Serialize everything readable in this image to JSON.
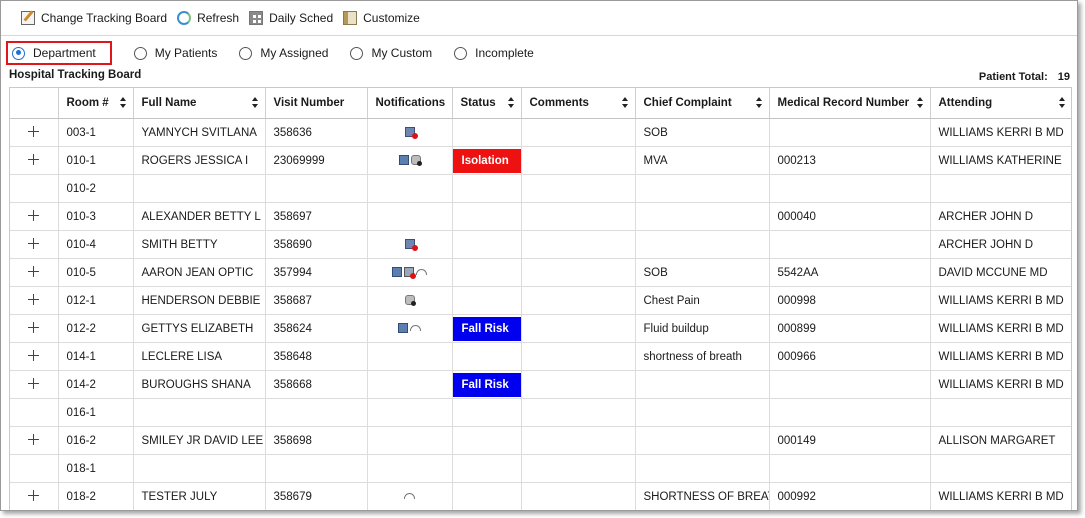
{
  "toolbar": {
    "change_tracking_board": "Change Tracking Board",
    "refresh": "Refresh",
    "daily_sched": "Daily Sched",
    "customize": "Customize"
  },
  "filters": {
    "options": [
      "Department",
      "My Patients",
      "My Assigned",
      "My Custom",
      "Incomplete"
    ],
    "selected": "Department"
  },
  "board": {
    "title": "Hospital Tracking Board",
    "patient_total_label": "Patient Total:",
    "patient_total_value": "19"
  },
  "columns": [
    "Room #",
    "Full Name",
    "Visit Number",
    "Notifications",
    "Status",
    "Comments",
    "Chief Complaint",
    "Medical Record Number",
    "Attending"
  ],
  "status_colors": {
    "Isolation": "#ee1111",
    "Fall Risk": "#0000ee"
  },
  "rows": [
    {
      "expand": true,
      "room": "003-1",
      "name": "YAMNYCH SVITLANA",
      "visit": "358636",
      "notif": [
        "alert-icon"
      ],
      "status": "",
      "comments": "",
      "complaint": "SOB",
      "mrn": "",
      "attending": "WILLIAMS KERRI B MD"
    },
    {
      "expand": true,
      "room": "010-1",
      "name": "ROGERS JESSICA I",
      "visit": "23069999",
      "notif": [
        "question-icon",
        "check-icon"
      ],
      "status": "Isolation",
      "comments": "",
      "complaint": "MVA",
      "mrn": "000213",
      "attending": "WILLIAMS KATHERINE"
    },
    {
      "expand": false,
      "room": "010-2",
      "name": "",
      "visit": "",
      "notif": [],
      "status": "",
      "comments": "",
      "complaint": "",
      "mrn": "",
      "attending": ""
    },
    {
      "expand": true,
      "room": "010-3",
      "name": "ALEXANDER BETTY L",
      "visit": "358697",
      "notif": [],
      "status": "",
      "comments": "",
      "complaint": "",
      "mrn": "000040",
      "attending": "ARCHER JOHN D"
    },
    {
      "expand": true,
      "room": "010-4",
      "name": "SMITH BETTY",
      "visit": "358690",
      "notif": [
        "alert-icon"
      ],
      "status": "",
      "comments": "",
      "complaint": "",
      "mrn": "",
      "attending": "ARCHER JOHN D"
    },
    {
      "expand": true,
      "room": "010-5",
      "name": "AARON JEAN OPTIC",
      "visit": "357994",
      "notif": [
        "question-icon",
        "flag-icon",
        "gauge-icon"
      ],
      "status": "",
      "comments": "",
      "complaint": "SOB",
      "mrn": "5542AA",
      "attending": "DAVID MCCUNE MD"
    },
    {
      "expand": true,
      "room": "012-1",
      "name": "HENDERSON DEBBIE",
      "visit": "358687",
      "notif": [
        "check-icon"
      ],
      "status": "",
      "comments": "",
      "complaint": "Chest Pain",
      "mrn": "000998",
      "attending": "WILLIAMS KERRI B MD"
    },
    {
      "expand": true,
      "room": "012-2",
      "name": "GETTYS ELIZABETH",
      "visit": "358624",
      "notif": [
        "question-icon",
        "gauge-icon"
      ],
      "status": "Fall Risk",
      "comments": "",
      "complaint": "Fluid buildup",
      "mrn": "000899",
      "attending": "WILLIAMS KERRI B MD"
    },
    {
      "expand": true,
      "room": "014-1",
      "name": "LECLERE LISA",
      "visit": "358648",
      "notif": [],
      "status": "",
      "comments": "",
      "complaint": "shortness of breath",
      "mrn": "000966",
      "attending": "WILLIAMS KERRI B MD"
    },
    {
      "expand": true,
      "room": "014-2",
      "name": "BUROUGHS SHANA",
      "visit": "358668",
      "notif": [],
      "status": "Fall Risk",
      "comments": "",
      "complaint": "",
      "mrn": "",
      "attending": "WILLIAMS KERRI B MD"
    },
    {
      "expand": false,
      "room": "016-1",
      "name": "",
      "visit": "",
      "notif": [],
      "status": "",
      "comments": "",
      "complaint": "",
      "mrn": "",
      "attending": ""
    },
    {
      "expand": true,
      "room": "016-2",
      "name": "SMILEY JR DAVID LEE",
      "visit": "358698",
      "notif": [],
      "status": "",
      "comments": "",
      "complaint": "",
      "mrn": "000149",
      "attending": "ALLISON MARGARET"
    },
    {
      "expand": false,
      "room": "018-1",
      "name": "",
      "visit": "",
      "notif": [],
      "status": "",
      "comments": "",
      "complaint": "",
      "mrn": "",
      "attending": ""
    },
    {
      "expand": true,
      "room": "018-2",
      "name": "TESTER JULY",
      "visit": "358679",
      "notif": [
        "gauge-icon"
      ],
      "status": "",
      "comments": "",
      "complaint": "SHORTNESS OF BREATH",
      "mrn": "000992",
      "attending": "WILLIAMS KERRI B MD"
    }
  ]
}
